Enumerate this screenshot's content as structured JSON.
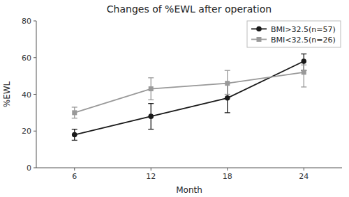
{
  "chart_data": {
    "type": "line",
    "title": "Changes of %EWL after operation",
    "xlabel": "Month",
    "ylabel": "%EWL",
    "x": [
      6,
      12,
      18,
      24
    ],
    "series": [
      {
        "name": "BMI>32.5(n=57)",
        "color": "#1a1a1a",
        "marker": "circle",
        "values": [
          18,
          28,
          38,
          58
        ],
        "yerr_low": [
          3,
          7,
          8,
          5
        ],
        "yerr_high": [
          3,
          7,
          8,
          4
        ]
      },
      {
        "name": "BMI<32.5(n=26)",
        "color": "#999999",
        "marker": "square",
        "values": [
          30,
          43,
          46,
          52
        ],
        "yerr_low": [
          3,
          6,
          6,
          8
        ],
        "yerr_high": [
          3,
          6,
          7,
          4
        ]
      }
    ],
    "xlim": [
      3,
      27
    ],
    "xticks": [
      6,
      12,
      18,
      24
    ],
    "ylim": [
      0,
      80
    ],
    "yticks": [
      0,
      20,
      40,
      60,
      80
    ],
    "grid": false,
    "legend": "upper right"
  }
}
